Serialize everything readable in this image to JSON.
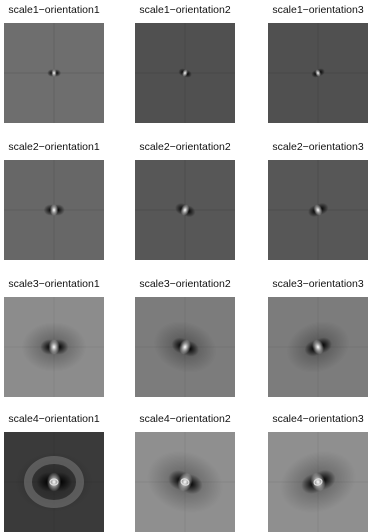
{
  "grid": {
    "rows": [
      {
        "cells": [
          {
            "label": "scale1−orientation1",
            "bg": "#6e6e6e",
            "orientation": 1,
            "scale": 1
          },
          {
            "label": "scale1−orientation2",
            "bg": "#505050",
            "orientation": 2,
            "scale": 1
          },
          {
            "label": "scale1−orientation3",
            "bg": "#505050",
            "orientation": 3,
            "scale": 1
          }
        ]
      },
      {
        "cells": [
          {
            "label": "scale2−orientation1",
            "bg": "#676767",
            "orientation": 1,
            "scale": 2
          },
          {
            "label": "scale2−orientation2",
            "bg": "#575757",
            "orientation": 2,
            "scale": 2
          },
          {
            "label": "scale2−orientation3",
            "bg": "#575757",
            "orientation": 3,
            "scale": 2
          }
        ]
      },
      {
        "cells": [
          {
            "label": "scale3−orientation1",
            "bg": "#8c8c8c",
            "orientation": 1,
            "scale": 3
          },
          {
            "label": "scale3−orientation2",
            "bg": "#7c7c7c",
            "orientation": 2,
            "scale": 3
          },
          {
            "label": "scale3−orientation3",
            "bg": "#7c7c7c",
            "orientation": 3,
            "scale": 3
          }
        ]
      },
      {
        "cells": [
          {
            "label": "scale4−orientation1",
            "bg": "#3a3a3a",
            "orientation": 1,
            "scale": 4
          },
          {
            "label": "scale4−orientation2",
            "bg": "#8f8f8f",
            "orientation": 2,
            "scale": 4
          },
          {
            "label": "scale4−orientation3",
            "bg": "#8f8f8f",
            "orientation": 3,
            "scale": 4
          }
        ]
      }
    ]
  }
}
